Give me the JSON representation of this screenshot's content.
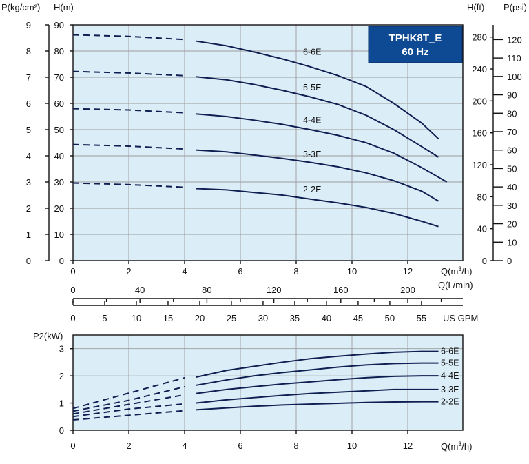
{
  "colors": {
    "plot_bg": "#dbeef8",
    "curve": "#0f1f52",
    "title_box": "#0d4a93",
    "title_box_text": "#ffffff"
  },
  "title_box": {
    "line1": "TPHK8T_E",
    "line2": "60 Hz"
  },
  "chart_data": [
    {
      "type": "line",
      "x_unit": "Q(m³/h)",
      "xlabel": "Q(m3/h)",
      "xlim": [
        0,
        13.5
      ],
      "x_ticks": [
        "0",
        "2",
        "4",
        "6",
        "8",
        "10",
        "12"
      ],
      "ylabel_left": "H(m)",
      "ylabel_pressure": "P(kg/cm²)",
      "ylabel_right_ft": "H(ft)",
      "ylabel_right_psi": "P(psi)",
      "ylim": [
        0,
        90
      ],
      "y_ticks_m": [
        "0",
        "10",
        "20",
        "30",
        "40",
        "50",
        "60",
        "70",
        "80",
        "90"
      ],
      "y_ticks_kgcm2": [
        "0",
        "1",
        "2",
        "3",
        "4",
        "5",
        "6",
        "7",
        "8",
        "9"
      ],
      "y_ticks_ft": [
        {
          "value": 0,
          "label": "0"
        },
        {
          "value": 40,
          "label": "40"
        },
        {
          "value": 80,
          "label": "80"
        },
        {
          "value": 120,
          "label": "120"
        },
        {
          "value": 160,
          "label": "160"
        },
        {
          "value": 200,
          "label": "200"
        },
        {
          "value": 240,
          "label": "240"
        },
        {
          "value": 280,
          "label": "280"
        }
      ],
      "y_ticks_psi": [
        {
          "value": 0,
          "label": "0"
        },
        {
          "value": 10,
          "label": "10"
        },
        {
          "value": 20,
          "label": "20"
        },
        {
          "value": 30,
          "label": "30"
        },
        {
          "value": 40,
          "label": "40"
        },
        {
          "value": 50,
          "label": "50"
        },
        {
          "value": 60,
          "label": "60"
        },
        {
          "value": 70,
          "label": "70"
        },
        {
          "value": 80,
          "label": "80"
        },
        {
          "value": 90,
          "label": "90"
        },
        {
          "value": 100,
          "label": "100"
        },
        {
          "value": 110,
          "label": "110"
        },
        {
          "value": 120,
          "label": "120"
        }
      ],
      "series": [
        {
          "name": "6-6E",
          "dashed": [
            [
              0,
              86.2
            ],
            [
              2,
              85.6
            ],
            [
              4,
              84.4
            ]
          ],
          "solid": [
            [
              4.4,
              83.8
            ],
            [
              5.5,
              82.0
            ],
            [
              6.5,
              79.6
            ],
            [
              7.5,
              77.0
            ],
            [
              8.5,
              74.0
            ],
            [
              9.5,
              70.6
            ],
            [
              10.5,
              66.5
            ],
            [
              11.5,
              60.0
            ],
            [
              12.5,
              52.5
            ],
            [
              13.1,
              46.5
            ]
          ],
          "label_at": [
            8.0,
            78.5
          ]
        },
        {
          "name": "5-5E",
          "dashed": [
            [
              0,
              72.2
            ],
            [
              2,
              71.6
            ],
            [
              4,
              70.6
            ]
          ],
          "solid": [
            [
              4.4,
              70.2
            ],
            [
              5.5,
              69.0
            ],
            [
              6.5,
              67.2
            ],
            [
              7.5,
              65.0
            ],
            [
              8.5,
              62.5
            ],
            [
              9.5,
              59.6
            ],
            [
              10.5,
              55.5
            ],
            [
              11.5,
              50.0
            ],
            [
              12.5,
              43.5
            ],
            [
              13.1,
              39.5
            ]
          ],
          "label_at": [
            8.0,
            65.0
          ]
        },
        {
          "name": "4-4E",
          "dashed": [
            [
              0,
              58.0
            ],
            [
              2,
              57.5
            ],
            [
              4,
              56.4
            ]
          ],
          "solid": [
            [
              4.4,
              56.0
            ],
            [
              5.5,
              55.0
            ],
            [
              6.5,
              53.6
            ],
            [
              7.5,
              52.0
            ],
            [
              8.5,
              50.0
            ],
            [
              9.5,
              47.8
            ],
            [
              10.5,
              45.0
            ],
            [
              11.5,
              41.0
            ],
            [
              12.5,
              35.5
            ],
            [
              13.4,
              30.0
            ]
          ],
          "label_at": [
            8.0,
            52.5
          ]
        },
        {
          "name": "3-3E",
          "dashed": [
            [
              0,
              44.3
            ],
            [
              2,
              43.7
            ],
            [
              4,
              42.6
            ]
          ],
          "solid": [
            [
              4.4,
              42.2
            ],
            [
              5.5,
              41.5
            ],
            [
              6.5,
              40.3
            ],
            [
              7.5,
              39.0
            ],
            [
              8.5,
              37.5
            ],
            [
              9.5,
              35.8
            ],
            [
              10.5,
              33.5
            ],
            [
              11.5,
              30.5
            ],
            [
              12.5,
              26.5
            ],
            [
              13.1,
              22.7
            ]
          ],
          "label_at": [
            8.0,
            39.5
          ]
        },
        {
          "name": "2-2E",
          "dashed": [
            [
              0,
              29.6
            ],
            [
              2,
              29.0
            ],
            [
              4,
              28.0
            ]
          ],
          "solid": [
            [
              4.4,
              27.5
            ],
            [
              5.5,
              27.0
            ],
            [
              6.5,
              26.0
            ],
            [
              7.5,
              25.0
            ],
            [
              8.5,
              23.5
            ],
            [
              9.5,
              22.0
            ],
            [
              10.5,
              20.3
            ],
            [
              11.5,
              18.0
            ],
            [
              12.5,
              15.0
            ],
            [
              13.1,
              13.0
            ]
          ],
          "label_at": [
            8.0,
            26.0
          ]
        }
      ]
    },
    {
      "type": "axis",
      "xlabel": "Q(L/min)",
      "ticks": [
        "0",
        "40",
        "80",
        "120",
        "160",
        "200"
      ]
    },
    {
      "type": "axis",
      "xlabel": "US GPM",
      "ticks": [
        "0",
        "5",
        "10",
        "15",
        "20",
        "25",
        "30",
        "35",
        "40",
        "45",
        "50",
        "55"
      ]
    },
    {
      "type": "line",
      "xlabel": "Q(m3/h)",
      "xlim": [
        0,
        13.5
      ],
      "x_ticks": [
        "0",
        "2",
        "4",
        "6",
        "8",
        "10",
        "12"
      ],
      "ylabel": "P2(kW)",
      "ylim": [
        0,
        3.5
      ],
      "y_ticks": [
        "0",
        "1",
        "2",
        "3"
      ],
      "series": [
        {
          "name": "6-6E",
          "dashed": [
            [
              0,
              0.8
            ],
            [
              0.7,
              1.0
            ],
            [
              4,
              1.93
            ]
          ],
          "solid": [
            [
              4.4,
              1.95
            ],
            [
              5.5,
              2.2
            ],
            [
              6.5,
              2.35
            ],
            [
              7.5,
              2.5
            ],
            [
              8.5,
              2.63
            ],
            [
              9.5,
              2.72
            ],
            [
              10.5,
              2.8
            ],
            [
              11.5,
              2.87
            ],
            [
              12.5,
              2.9
            ],
            [
              13.1,
              2.9
            ]
          ]
        },
        {
          "name": "5-5E",
          "dashed": [
            [
              0,
              0.7
            ],
            [
              2,
              1.1
            ],
            [
              4,
              1.6
            ]
          ],
          "solid": [
            [
              4.4,
              1.65
            ],
            [
              5.5,
              1.85
            ],
            [
              6.5,
              2.0
            ],
            [
              7.5,
              2.12
            ],
            [
              8.5,
              2.22
            ],
            [
              9.5,
              2.32
            ],
            [
              10.5,
              2.4
            ],
            [
              11.5,
              2.45
            ],
            [
              12.5,
              2.47
            ],
            [
              13.1,
              2.47
            ]
          ]
        },
        {
          "name": "4-4E",
          "dashed": [
            [
              0,
              0.6
            ],
            [
              2,
              0.95
            ],
            [
              4,
              1.3
            ]
          ],
          "solid": [
            [
              4.4,
              1.35
            ],
            [
              5.5,
              1.5
            ],
            [
              6.5,
              1.6
            ],
            [
              7.5,
              1.7
            ],
            [
              8.5,
              1.78
            ],
            [
              9.5,
              1.86
            ],
            [
              10.5,
              1.93
            ],
            [
              11.5,
              1.98
            ],
            [
              12.5,
              2.0
            ],
            [
              13.1,
              2.0
            ]
          ]
        },
        {
          "name": "3-3E",
          "dashed": [
            [
              0,
              0.5
            ],
            [
              2,
              0.78
            ],
            [
              4,
              0.97
            ]
          ],
          "solid": [
            [
              4.4,
              1.0
            ],
            [
              5.5,
              1.12
            ],
            [
              6.5,
              1.2
            ],
            [
              7.5,
              1.28
            ],
            [
              8.5,
              1.35
            ],
            [
              9.5,
              1.4
            ],
            [
              10.5,
              1.45
            ],
            [
              11.5,
              1.5
            ],
            [
              12.5,
              1.5
            ],
            [
              13.1,
              1.5
            ]
          ]
        },
        {
          "name": "2-2E",
          "dashed": [
            [
              0,
              0.38
            ],
            [
              2,
              0.55
            ],
            [
              4,
              0.72
            ]
          ],
          "solid": [
            [
              4.4,
              0.75
            ],
            [
              5.5,
              0.82
            ],
            [
              6.5,
              0.88
            ],
            [
              7.5,
              0.93
            ],
            [
              8.5,
              0.96
            ],
            [
              9.5,
              0.99
            ],
            [
              10.5,
              1.02
            ],
            [
              11.5,
              1.04
            ],
            [
              12.5,
              1.05
            ],
            [
              13.1,
              1.05
            ]
          ]
        }
      ]
    }
  ]
}
